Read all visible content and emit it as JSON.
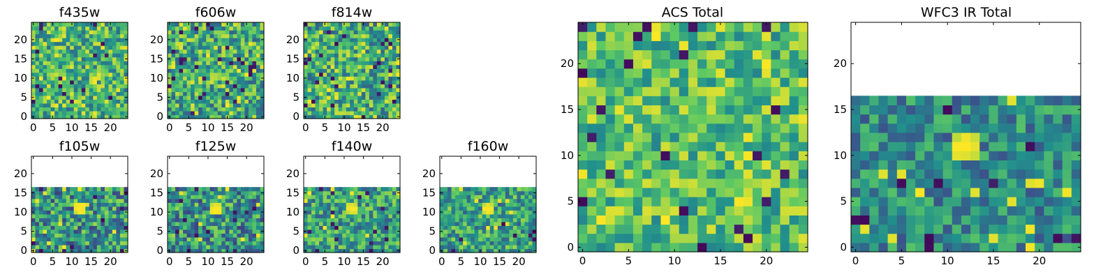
{
  "colormap": {
    "name": "viridis",
    "low": "#440154",
    "mid_low": "#3b528b",
    "mid": "#21908c",
    "mid_high": "#5dc963",
    "high": "#fde725"
  },
  "chart_data": [
    {
      "type": "heatmap",
      "title": "f435w",
      "xticks": [
        0,
        5,
        10,
        15,
        20
      ],
      "yticks": [
        0,
        5,
        10,
        15,
        20
      ],
      "xlim": [
        -0.5,
        24.5
      ],
      "ylim": [
        -0.5,
        24.5
      ],
      "grid_size": 25,
      "filled_rows": 25,
      "seed": 11,
      "value_range": [
        0.35,
        0.95
      ]
    },
    {
      "type": "heatmap",
      "title": "f606w",
      "xticks": [
        0,
        5,
        10,
        15,
        20
      ],
      "yticks": [
        0,
        5,
        10,
        15,
        20
      ],
      "xlim": [
        -0.5,
        24.5
      ],
      "ylim": [
        -0.5,
        24.5
      ],
      "grid_size": 25,
      "filled_rows": 25,
      "seed": 23,
      "value_range": [
        0.3,
        0.95
      ]
    },
    {
      "type": "heatmap",
      "title": "f814w",
      "xticks": [
        0,
        5,
        10,
        15,
        20
      ],
      "yticks": [
        0,
        5,
        10,
        15,
        20
      ],
      "xlim": [
        -0.5,
        24.5
      ],
      "ylim": [
        -0.5,
        24.5
      ],
      "grid_size": 25,
      "filled_rows": 25,
      "seed": 37,
      "value_range": [
        0.3,
        0.95
      ]
    },
    {
      "type": "heatmap",
      "title": "f105w",
      "xticks": [
        0,
        5,
        10,
        15,
        20
      ],
      "yticks": [
        0,
        5,
        10,
        15,
        20
      ],
      "xlim": [
        -0.5,
        24.5
      ],
      "ylim": [
        -0.5,
        24.5
      ],
      "grid_size": 25,
      "filled_rows": 17,
      "seed": 41,
      "value_range": [
        0.2,
        0.85
      ],
      "peak": {
        "x": 12,
        "y": 11,
        "value": 1.0
      }
    },
    {
      "type": "heatmap",
      "title": "f125w",
      "xticks": [
        0,
        5,
        10,
        15,
        20
      ],
      "yticks": [
        0,
        5,
        10,
        15,
        20
      ],
      "xlim": [
        -0.5,
        24.5
      ],
      "ylim": [
        -0.5,
        24.5
      ],
      "grid_size": 25,
      "filled_rows": 17,
      "seed": 53,
      "value_range": [
        0.2,
        0.85
      ],
      "peak": {
        "x": 12,
        "y": 11,
        "value": 1.0
      }
    },
    {
      "type": "heatmap",
      "title": "f140w",
      "xticks": [
        0,
        5,
        10,
        15,
        20
      ],
      "yticks": [
        0,
        5,
        10,
        15,
        20
      ],
      "xlim": [
        -0.5,
        24.5
      ],
      "ylim": [
        -0.5,
        24.5
      ],
      "grid_size": 25,
      "filled_rows": 17,
      "seed": 67,
      "value_range": [
        0.3,
        0.85
      ],
      "peak": {
        "x": 12,
        "y": 11,
        "value": 1.0
      }
    },
    {
      "type": "heatmap",
      "title": "f160w",
      "xticks": [
        0,
        5,
        10,
        15,
        20
      ],
      "yticks": [
        0,
        5,
        10,
        15,
        20
      ],
      "xlim": [
        -0.5,
        24.5
      ],
      "ylim": [
        -0.5,
        24.5
      ],
      "grid_size": 25,
      "filled_rows": 17,
      "seed": 79,
      "value_range": [
        0.3,
        0.85
      ],
      "peak": {
        "x": 12,
        "y": 11,
        "value": 1.0
      }
    },
    {
      "type": "heatmap",
      "title": "ACS Total",
      "xticks": [
        0,
        5,
        10,
        15,
        20
      ],
      "yticks": [
        0,
        5,
        10,
        15,
        20
      ],
      "xlim": [
        -0.5,
        24.5
      ],
      "ylim": [
        -0.5,
        24.5
      ],
      "grid_size": 25,
      "filled_rows": 25,
      "seed": 97,
      "value_range": [
        0.45,
        0.95
      ]
    },
    {
      "type": "heatmap",
      "title": "WFC3 IR Total",
      "xticks": [
        0,
        5,
        10,
        15,
        20
      ],
      "yticks": [
        0,
        5,
        10,
        15,
        20
      ],
      "xlim": [
        -0.5,
        24.5
      ],
      "ylim": [
        -0.5,
        24.5
      ],
      "grid_size": 25,
      "filled_rows": 17,
      "seed": 113,
      "value_range": [
        0.25,
        0.72
      ],
      "peak": {
        "x": 12,
        "y": 11,
        "value": 1.0
      }
    }
  ]
}
